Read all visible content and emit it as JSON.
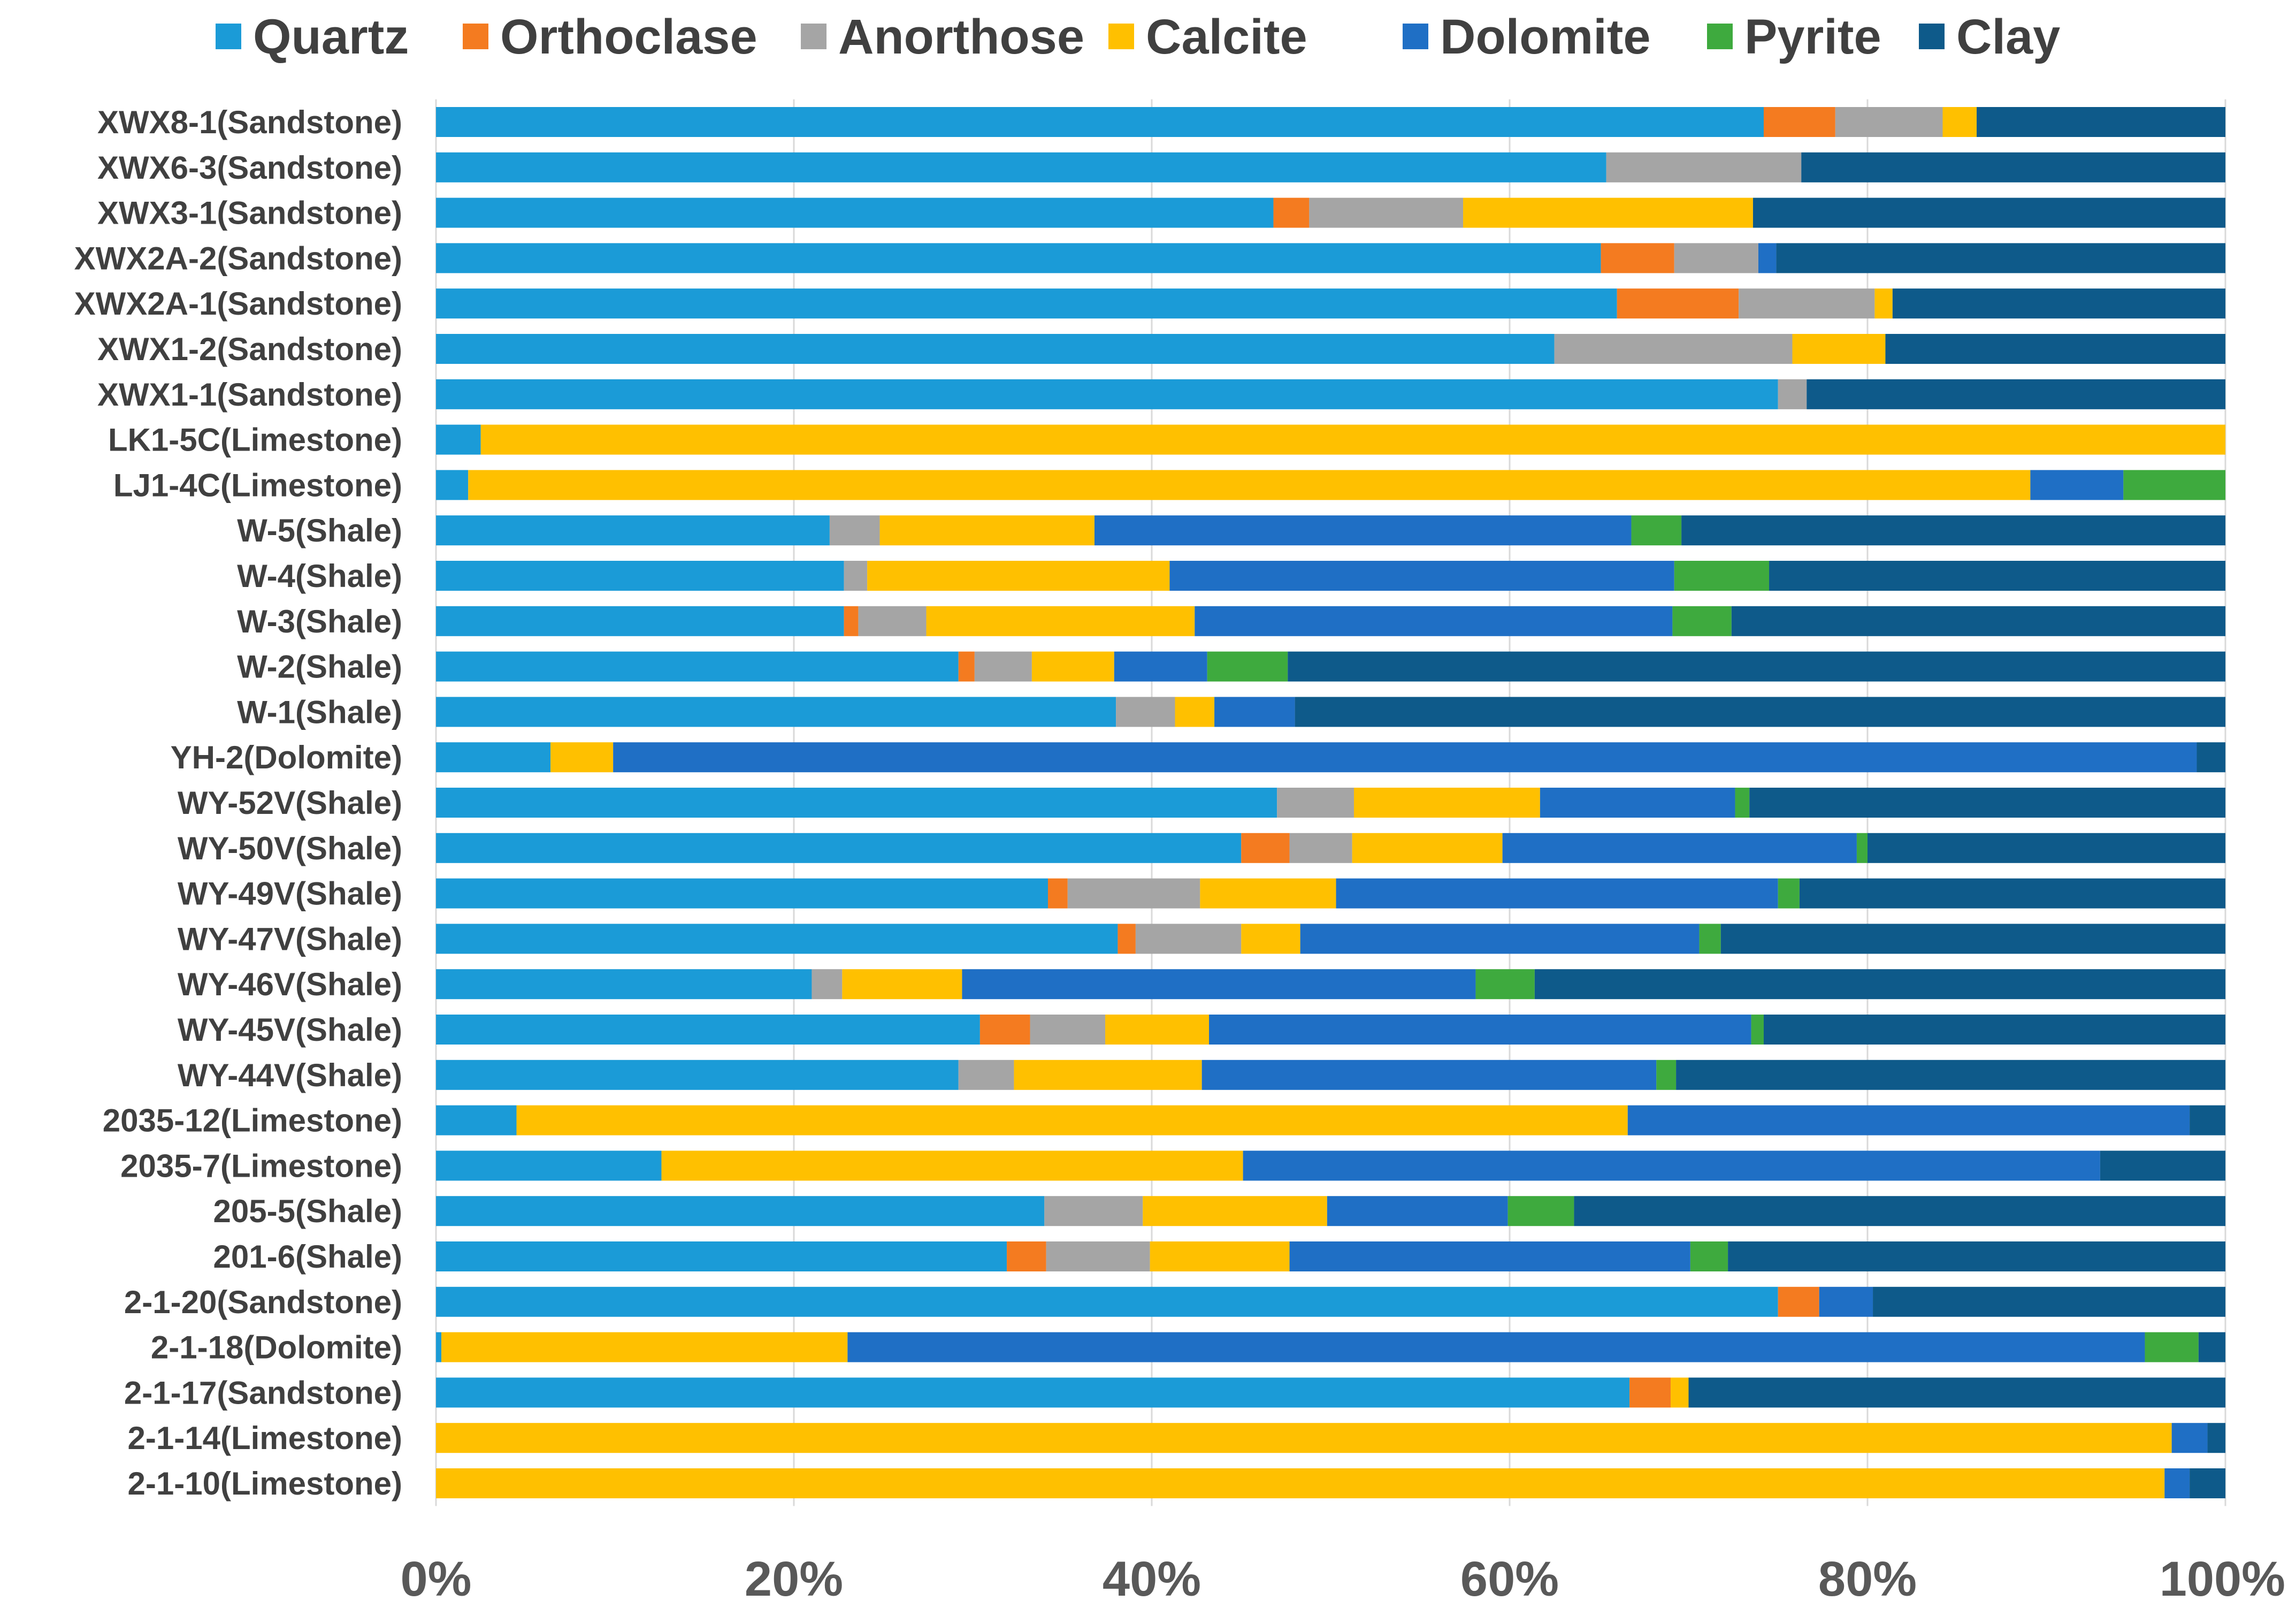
{
  "chart_data": {
    "type": "bar",
    "orientation": "horizontal",
    "stacked": "percent",
    "title": "",
    "xlabel": "",
    "ylabel": "",
    "xlim": [
      0,
      100
    ],
    "x_ticks": [
      "0%",
      "20%",
      "40%",
      "60%",
      "80%",
      "100%"
    ],
    "grid": true,
    "legend_position": "top",
    "categories": [
      "XWX8-1(Sandstone)",
      "XWX6-3(Sandstone)",
      "XWX3-1(Sandstone)",
      "XWX2A-2(Sandstone)",
      "XWX2A-1(Sandstone)",
      "XWX1-2(Sandstone)",
      "XWX1-1(Sandstone)",
      "LK1-5C(Limestone)",
      "LJ1-4C(Limestone)",
      "W-5(Shale)",
      "W-4(Shale)",
      "W-3(Shale)",
      "W-2(Shale)",
      "W-1(Shale)",
      "YH-2(Dolomite)",
      "WY-52V(Shale)",
      "WY-50V(Shale)",
      "WY-49V(Shale)",
      "WY-47V(Shale)",
      "WY-46V(Shale)",
      "WY-45V(Shale)",
      "WY-44V(Shale)",
      "2035-12(Limestone)",
      "2035-7(Limestone)",
      "205-5(Shale)",
      "201-6(Shale)",
      "2-1-20(Sandstone)",
      "2-1-18(Dolomite)",
      "2-1-17(Sandstone)",
      "2-1-14(Limestone)",
      "2-1-10(Limestone)"
    ],
    "series": [
      {
        "name": "Quartz",
        "color": "#1B9BD7",
        "values": [
          74.2,
          65.4,
          46.8,
          65.1,
          66,
          62.5,
          75,
          2.5,
          1.8,
          22,
          22.8,
          22.8,
          29.2,
          38,
          6.4,
          47,
          45,
          34.2,
          38.1,
          21,
          30.4,
          29.2,
          4.5,
          12.6,
          34,
          31.9,
          75,
          0.3,
          66.7,
          0,
          0
        ]
      },
      {
        "name": "Orthoclase",
        "color": "#F47B20",
        "values": [
          4,
          0,
          2,
          4.1,
          6.8,
          0,
          0,
          0,
          0,
          0,
          0,
          0.8,
          0.9,
          0,
          0,
          0,
          2.7,
          1.1,
          1,
          0,
          2.8,
          0,
          0,
          0,
          0,
          2.2,
          2.3,
          0,
          2.3,
          0,
          0
        ]
      },
      {
        "name": "Anorthose",
        "color": "#A5A5A5",
        "values": [
          6,
          10.9,
          8.6,
          4.7,
          7.6,
          13.3,
          1.6,
          0,
          0,
          2.8,
          1.3,
          3.8,
          3.2,
          3.3,
          0,
          4.3,
          3.5,
          7.4,
          5.9,
          1.7,
          4.2,
          3.1,
          0,
          0,
          5.5,
          5.8,
          0,
          0,
          0,
          0,
          0
        ]
      },
      {
        "name": "Calcite",
        "color": "#FFC000",
        "values": [
          1.9,
          0,
          16.2,
          0,
          1,
          5.2,
          0,
          97.5,
          87.3,
          12,
          16.9,
          15,
          4.6,
          2.2,
          3.5,
          10.4,
          8.4,
          7.6,
          3.3,
          6.7,
          5.8,
          10.5,
          62.1,
          32.5,
          10.3,
          7.8,
          0,
          22.7,
          1,
          97,
          96.6
        ]
      },
      {
        "name": "Dolomite",
        "color": "#1F6FC5",
        "values": [
          0,
          0,
          0,
          1,
          0,
          0,
          0,
          0,
          5.2,
          30,
          28.2,
          26.7,
          5.2,
          4.5,
          88.5,
          10.9,
          19.8,
          24.7,
          22.3,
          28.7,
          30.3,
          25.4,
          31.4,
          47.9,
          10.1,
          22.4,
          3,
          72.5,
          0,
          2,
          1.4
        ]
      },
      {
        "name": "Pyrite",
        "color": "#3EAA3E",
        "values": [
          0,
          0,
          0,
          0,
          0,
          0,
          0,
          0,
          5.7,
          2.8,
          5.3,
          3.3,
          4.5,
          0,
          0,
          0.8,
          0.6,
          1.2,
          1.2,
          3.3,
          0.7,
          1.1,
          0,
          0,
          3.7,
          2.1,
          0,
          3,
          0,
          0,
          0
        ]
      },
      {
        "name": "Clay",
        "color": "#0E5A8A",
        "values": [
          13.9,
          23.7,
          26.4,
          25.1,
          18.6,
          19,
          23.4,
          0,
          0,
          30.4,
          25.5,
          27.6,
          52.4,
          52,
          1.6,
          26.6,
          20,
          23.8,
          28.2,
          38.6,
          25.8,
          30.7,
          2,
          7,
          36.4,
          27.8,
          19.7,
          1.5,
          30,
          1,
          2
        ]
      }
    ]
  }
}
